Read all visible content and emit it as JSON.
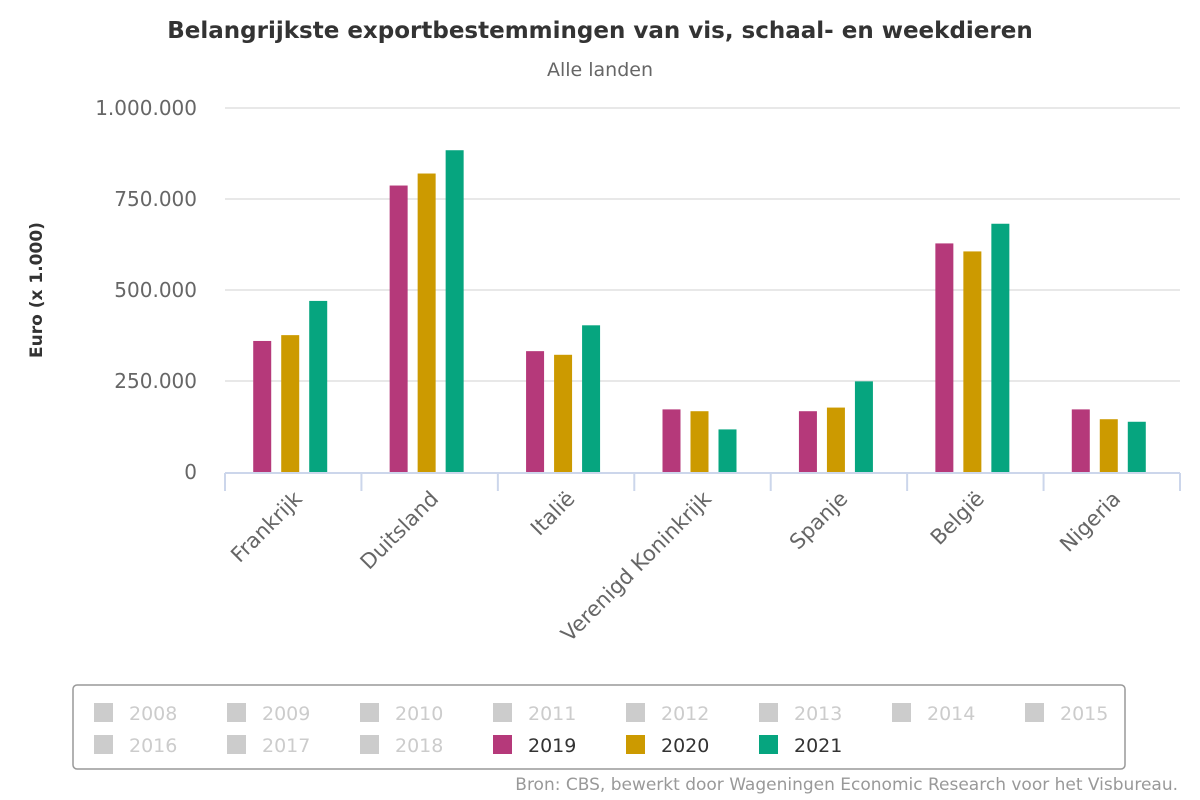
{
  "chart_data": {
    "type": "bar",
    "title": "Belangrijkste exportbestemmingen van vis, schaal- en weekdieren",
    "subtitle": "Alle landen",
    "xlabel": "",
    "ylabel": "Euro (x 1.000)",
    "ylim": [
      0,
      1000000
    ],
    "yticks": [
      0,
      250000,
      500000,
      750000,
      1000000
    ],
    "ytick_labels": [
      "0",
      "250.000",
      "500.000",
      "750.000",
      "1.000.000"
    ],
    "grid": true,
    "categories": [
      "Frankrijk",
      "Duitsland",
      "Italië",
      "Verenigd Koninkrijk",
      "Spanje",
      "België",
      "Nigeria"
    ],
    "series": [
      {
        "name": "2019",
        "color": "#b5397a",
        "values": [
          360000,
          787000,
          332000,
          172000,
          167000,
          628000,
          172000
        ]
      },
      {
        "name": "2020",
        "color": "#cc9a00",
        "values": [
          376000,
          820000,
          322000,
          167000,
          177000,
          606000,
          145000
        ]
      },
      {
        "name": "2021",
        "color": "#06a57f",
        "values": [
          470000,
          884000,
          403000,
          117000,
          249000,
          682000,
          138000
        ]
      }
    ],
    "legend": {
      "placement": "bottom",
      "inactive_color": "#cccccc",
      "items": [
        {
          "label": "2008",
          "active": false
        },
        {
          "label": "2009",
          "active": false
        },
        {
          "label": "2010",
          "active": false
        },
        {
          "label": "2011",
          "active": false
        },
        {
          "label": "2012",
          "active": false
        },
        {
          "label": "2013",
          "active": false
        },
        {
          "label": "2014",
          "active": false
        },
        {
          "label": "2015",
          "active": false
        },
        {
          "label": "2016",
          "active": false
        },
        {
          "label": "2017",
          "active": false
        },
        {
          "label": "2018",
          "active": false
        },
        {
          "label": "2019",
          "active": true,
          "color": "#b5397a"
        },
        {
          "label": "2020",
          "active": true,
          "color": "#cc9a00"
        },
        {
          "label": "2021",
          "active": true,
          "color": "#06a57f"
        }
      ]
    },
    "source": "Bron: CBS, bewerkt door Wageningen Economic Research voor het Visbureau."
  }
}
